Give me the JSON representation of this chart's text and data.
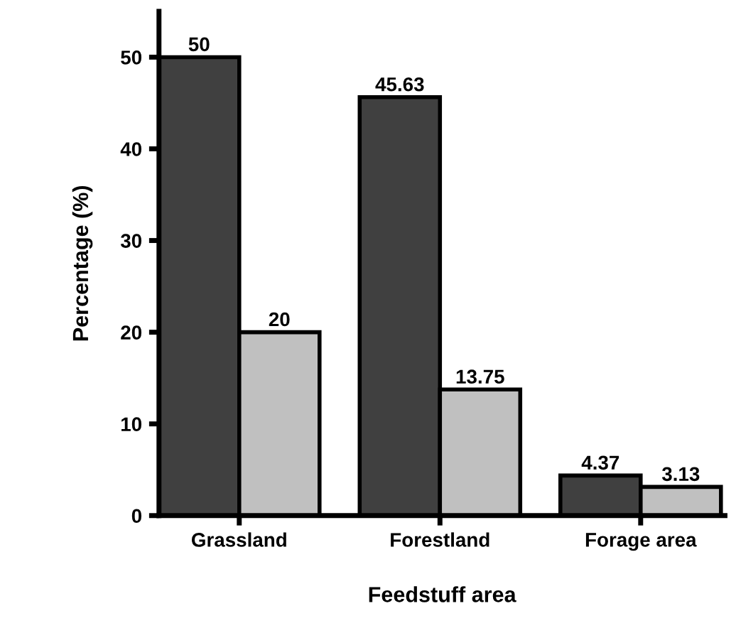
{
  "chart_data": {
    "type": "bar",
    "xlabel": "Feedstuff area",
    "ylabel": "Percentage (%)",
    "categories": [
      "Grassland",
      "Forestland",
      "Forage area"
    ],
    "series": [
      {
        "color": "#404040",
        "values": [
          50,
          45.63,
          4.37
        ],
        "value_labels": [
          "50",
          "45.63",
          "4.37"
        ]
      },
      {
        "color": "#c0c0c0",
        "values": [
          20,
          13.75,
          3.13
        ],
        "value_labels": [
          "20",
          "13.75",
          "3.13"
        ]
      }
    ],
    "ylim": [
      0,
      55
    ],
    "yticks": [
      0,
      10,
      20,
      30,
      40,
      50
    ],
    "grid": false,
    "legend": false
  }
}
